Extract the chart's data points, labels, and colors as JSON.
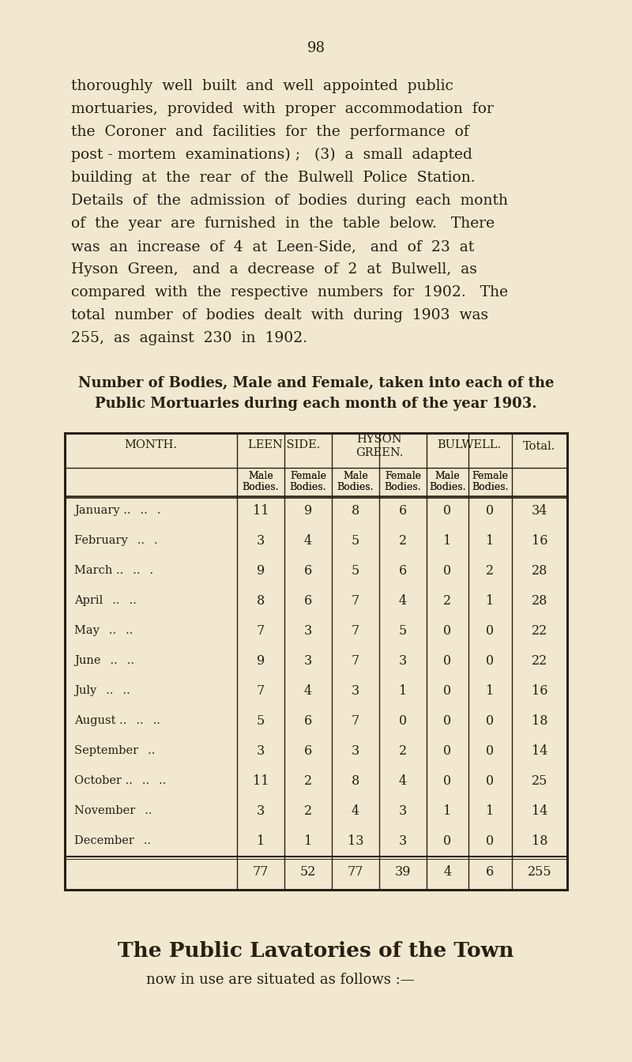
{
  "bg_color": "#f2e8d0",
  "text_color": "#2c1e0f",
  "page_number": "98",
  "body_lines": [
    "thoroughly  well  built  and  well  appointed  public",
    "mortuaries,  provided  with  proper  accommodation  for",
    "the  Coroner  and  facilities  for  the  performance  of",
    "post - mortem  examinations) ;   (3)  a  small  adapted",
    "building  at  the  rear  of  the  Bulwell  Police  Station.",
    "Details  of  the  admission  of  bodies  during  each  month",
    "of  the  year  are  furnished  in  the  table  below.   There",
    "was  an  increase  of  4  at  Leen-Side,   and  of  23  at",
    "Hyson  Green,   and  a  decrease  of  2  at  Bulwell,  as",
    "compared  with  the  respective  numbers  for  1902.   The",
    "total  number  of  bodies  dealt  with  during  1903  was",
    "255,  as  against  230  in  1902."
  ],
  "table_title1": "Number of Bodies, Male and Female, taken into each of the",
  "table_title2": "Public Mortuaries during each month of the year 1903.",
  "months_display": [
    "January .. .. .",
    "February .. .",
    "March .. .. .",
    "April .. ..",
    "May .. ..",
    "June .. ..",
    "July .. ..",
    "August .. .. ..",
    "September ..",
    "October .. .. ..",
    "November ..",
    "December .."
  ],
  "leen_male": [
    11,
    3,
    9,
    8,
    7,
    9,
    7,
    5,
    3,
    11,
    3,
    1
  ],
  "leen_female": [
    9,
    4,
    6,
    6,
    3,
    3,
    4,
    6,
    6,
    2,
    2,
    1
  ],
  "hyson_male": [
    8,
    5,
    5,
    7,
    7,
    7,
    3,
    7,
    3,
    8,
    4,
    13
  ],
  "hyson_female": [
    6,
    2,
    6,
    4,
    5,
    3,
    1,
    0,
    2,
    4,
    3,
    3
  ],
  "bulwell_male": [
    0,
    1,
    0,
    2,
    0,
    0,
    0,
    0,
    0,
    0,
    1,
    0
  ],
  "bulwell_female": [
    0,
    1,
    2,
    1,
    0,
    0,
    1,
    0,
    0,
    0,
    1,
    0
  ],
  "row_totals": [
    34,
    16,
    28,
    28,
    22,
    22,
    16,
    18,
    14,
    25,
    14,
    18
  ],
  "col_totals": [
    77,
    52,
    77,
    39,
    4,
    6,
    255
  ],
  "footer_title": "The Public Lavatories of the Town",
  "footer_sub": "now in use are situated as follows :—"
}
